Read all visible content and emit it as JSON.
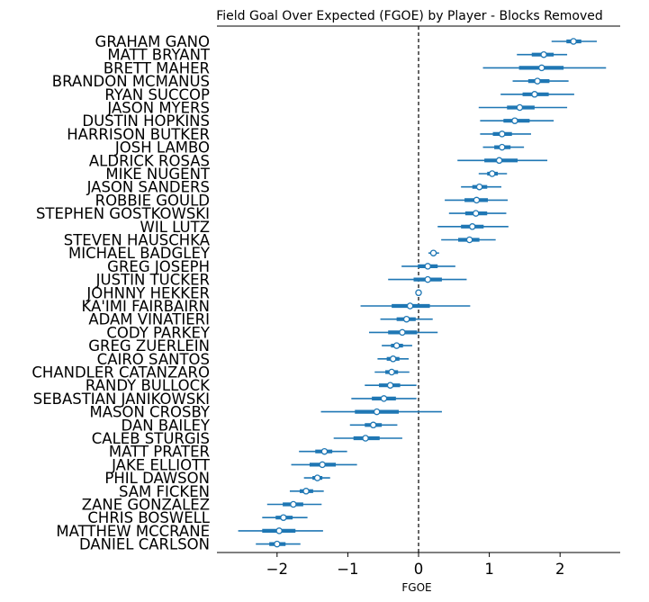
{
  "chart_data": {
    "type": "scatter",
    "title": "Field Goal Over Expected (FGOE) by Player - Blocks Removed",
    "xlabel": "FGOE",
    "ylabel": "",
    "xlim": [
      -2.85,
      2.85
    ],
    "xticks": [
      -2,
      -1,
      0,
      1,
      2
    ],
    "xtick_labels": [
      "−2",
      "−1",
      "0",
      "1",
      "2"
    ],
    "reference_line_x": 0,
    "grid": false,
    "legend": "none",
    "color": "#1f77b4",
    "players": [
      {
        "name": "GRAHAM GANO",
        "mean": 2.19,
        "hdi_inner": [
          2.09,
          2.3
        ],
        "hdi_outer": [
          1.88,
          2.52
        ]
      },
      {
        "name": "MATT BRYANT",
        "mean": 1.77,
        "hdi_inner": [
          1.6,
          1.91
        ],
        "hdi_outer": [
          1.39,
          2.1
        ]
      },
      {
        "name": "BRETT MAHER",
        "mean": 1.74,
        "hdi_inner": [
          1.42,
          2.05
        ],
        "hdi_outer": [
          0.91,
          2.65
        ]
      },
      {
        "name": "BRANDON MCMANUS",
        "mean": 1.68,
        "hdi_inner": [
          1.55,
          1.85
        ],
        "hdi_outer": [
          1.33,
          2.12
        ]
      },
      {
        "name": "RYAN SUCCOP",
        "mean": 1.64,
        "hdi_inner": [
          1.47,
          1.84
        ],
        "hdi_outer": [
          1.16,
          2.2
        ]
      },
      {
        "name": "JASON MYERS",
        "mean": 1.43,
        "hdi_inner": [
          1.25,
          1.64
        ],
        "hdi_outer": [
          0.85,
          2.1
        ]
      },
      {
        "name": "DUSTIN HOPKINS",
        "mean": 1.36,
        "hdi_inner": [
          1.2,
          1.57
        ],
        "hdi_outer": [
          0.87,
          1.91
        ]
      },
      {
        "name": "HARRISON BUTKER",
        "mean": 1.18,
        "hdi_inner": [
          1.05,
          1.32
        ],
        "hdi_outer": [
          0.87,
          1.59
        ]
      },
      {
        "name": "JOSH LAMBO",
        "mean": 1.18,
        "hdi_inner": [
          1.07,
          1.3
        ],
        "hdi_outer": [
          0.91,
          1.49
        ]
      },
      {
        "name": "ALDRICK ROSAS",
        "mean": 1.14,
        "hdi_inner": [
          0.93,
          1.4
        ],
        "hdi_outer": [
          0.55,
          1.82
        ]
      },
      {
        "name": "MIKE NUGENT",
        "mean": 1.04,
        "hdi_inner": [
          0.97,
          1.12
        ],
        "hdi_outer": [
          0.85,
          1.25
        ]
      },
      {
        "name": "JASON SANDERS",
        "mean": 0.86,
        "hdi_inner": [
          0.76,
          0.97
        ],
        "hdi_outer": [
          0.6,
          1.17
        ]
      },
      {
        "name": "ROBBIE GOULD",
        "mean": 0.82,
        "hdi_inner": [
          0.65,
          0.98
        ],
        "hdi_outer": [
          0.37,
          1.26
        ]
      },
      {
        "name": "STEPHEN GOSTKOWSKI",
        "mean": 0.81,
        "hdi_inner": [
          0.66,
          0.97
        ],
        "hdi_outer": [
          0.43,
          1.24
        ]
      },
      {
        "name": "WIL LUTZ",
        "mean": 0.76,
        "hdi_inner": [
          0.6,
          0.92
        ],
        "hdi_outer": [
          0.27,
          1.27
        ]
      },
      {
        "name": "STEVEN HAUSCHKA",
        "mean": 0.72,
        "hdi_inner": [
          0.56,
          0.86
        ],
        "hdi_outer": [
          0.32,
          1.09
        ]
      },
      {
        "name": "MICHAEL BADGLEY",
        "mean": 0.21,
        "hdi_inner": [
          0.18,
          0.25
        ],
        "hdi_outer": [
          0.14,
          0.29
        ]
      },
      {
        "name": "GREG JOSEPH",
        "mean": 0.13,
        "hdi_inner": [
          -0.01,
          0.27
        ],
        "hdi_outer": [
          -0.24,
          0.52
        ]
      },
      {
        "name": "JUSTIN TUCKER",
        "mean": 0.13,
        "hdi_inner": [
          -0.07,
          0.33
        ],
        "hdi_outer": [
          -0.43,
          0.68
        ]
      },
      {
        "name": "JOHNNY HEKKER",
        "mean": 0.0,
        "hdi_inner": [
          -0.01,
          0.01
        ],
        "hdi_outer": [
          -0.02,
          0.02
        ]
      },
      {
        "name": "KA'IMI FAIRBAIRN",
        "mean": -0.12,
        "hdi_inner": [
          -0.38,
          0.16
        ],
        "hdi_outer": [
          -0.82,
          0.73
        ]
      },
      {
        "name": "ADAM VINATIERI",
        "mean": -0.17,
        "hdi_inner": [
          -0.31,
          -0.04
        ],
        "hdi_outer": [
          -0.54,
          0.2
        ]
      },
      {
        "name": "CODY PARKEY",
        "mean": -0.23,
        "hdi_inner": [
          -0.43,
          -0.02
        ],
        "hdi_outer": [
          -0.7,
          0.27
        ]
      },
      {
        "name": "GREG ZUERLEIN",
        "mean": -0.31,
        "hdi_inner": [
          -0.39,
          -0.22
        ],
        "hdi_outer": [
          -0.52,
          -0.09
        ]
      },
      {
        "name": "CAIRO SANTOS",
        "mean": -0.36,
        "hdi_inner": [
          -0.45,
          -0.27
        ],
        "hdi_outer": [
          -0.58,
          -0.14
        ]
      },
      {
        "name": "CHANDLER CATANZARO",
        "mean": -0.38,
        "hdi_inner": [
          -0.47,
          -0.29
        ],
        "hdi_outer": [
          -0.62,
          -0.13
        ]
      },
      {
        "name": "RANDY BULLOCK",
        "mean": -0.4,
        "hdi_inner": [
          -0.56,
          -0.26
        ],
        "hdi_outer": [
          -0.76,
          -0.03
        ]
      },
      {
        "name": "SEBASTIAN JANIKOWSKI",
        "mean": -0.49,
        "hdi_inner": [
          -0.66,
          -0.32
        ],
        "hdi_outer": [
          -0.95,
          -0.03
        ]
      },
      {
        "name": "MASON CROSBY",
        "mean": -0.59,
        "hdi_inner": [
          -0.9,
          -0.28
        ],
        "hdi_outer": [
          -1.38,
          0.33
        ]
      },
      {
        "name": "DAN BAILEY",
        "mean": -0.64,
        "hdi_inner": [
          -0.76,
          -0.52
        ],
        "hdi_outer": [
          -0.97,
          -0.3
        ]
      },
      {
        "name": "CALEB STURGIS",
        "mean": -0.75,
        "hdi_inner": [
          -0.92,
          -0.55
        ],
        "hdi_outer": [
          -1.2,
          -0.23
        ]
      },
      {
        "name": "MATT PRATER",
        "mean": -1.33,
        "hdi_inner": [
          -1.46,
          -1.22
        ],
        "hdi_outer": [
          -1.69,
          -1.01
        ]
      },
      {
        "name": "JAKE ELLIOTT",
        "mean": -1.36,
        "hdi_inner": [
          -1.54,
          -1.17
        ],
        "hdi_outer": [
          -1.8,
          -0.87
        ]
      },
      {
        "name": "PHIL DAWSON",
        "mean": -1.43,
        "hdi_inner": [
          -1.5,
          -1.36
        ],
        "hdi_outer": [
          -1.62,
          -1.25
        ]
      },
      {
        "name": "SAM FICKEN",
        "mean": -1.59,
        "hdi_inner": [
          -1.68,
          -1.49
        ],
        "hdi_outer": [
          -1.82,
          -1.34
        ]
      },
      {
        "name": "ZANE GONZALEZ",
        "mean": -1.77,
        "hdi_inner": [
          -1.92,
          -1.63
        ],
        "hdi_outer": [
          -2.14,
          -1.37
        ]
      },
      {
        "name": "CHRIS BOSWELL",
        "mean": -1.91,
        "hdi_inner": [
          -2.02,
          -1.78
        ],
        "hdi_outer": [
          -2.21,
          -1.57
        ]
      },
      {
        "name": "MATTHEW MCCRANE",
        "mean": -1.97,
        "hdi_inner": [
          -2.21,
          -1.74
        ],
        "hdi_outer": [
          -2.55,
          -1.35
        ]
      },
      {
        "name": "DANIEL CARLSON",
        "mean": -2.0,
        "hdi_inner": [
          -2.11,
          -1.88
        ],
        "hdi_outer": [
          -2.3,
          -1.67
        ]
      }
    ]
  }
}
